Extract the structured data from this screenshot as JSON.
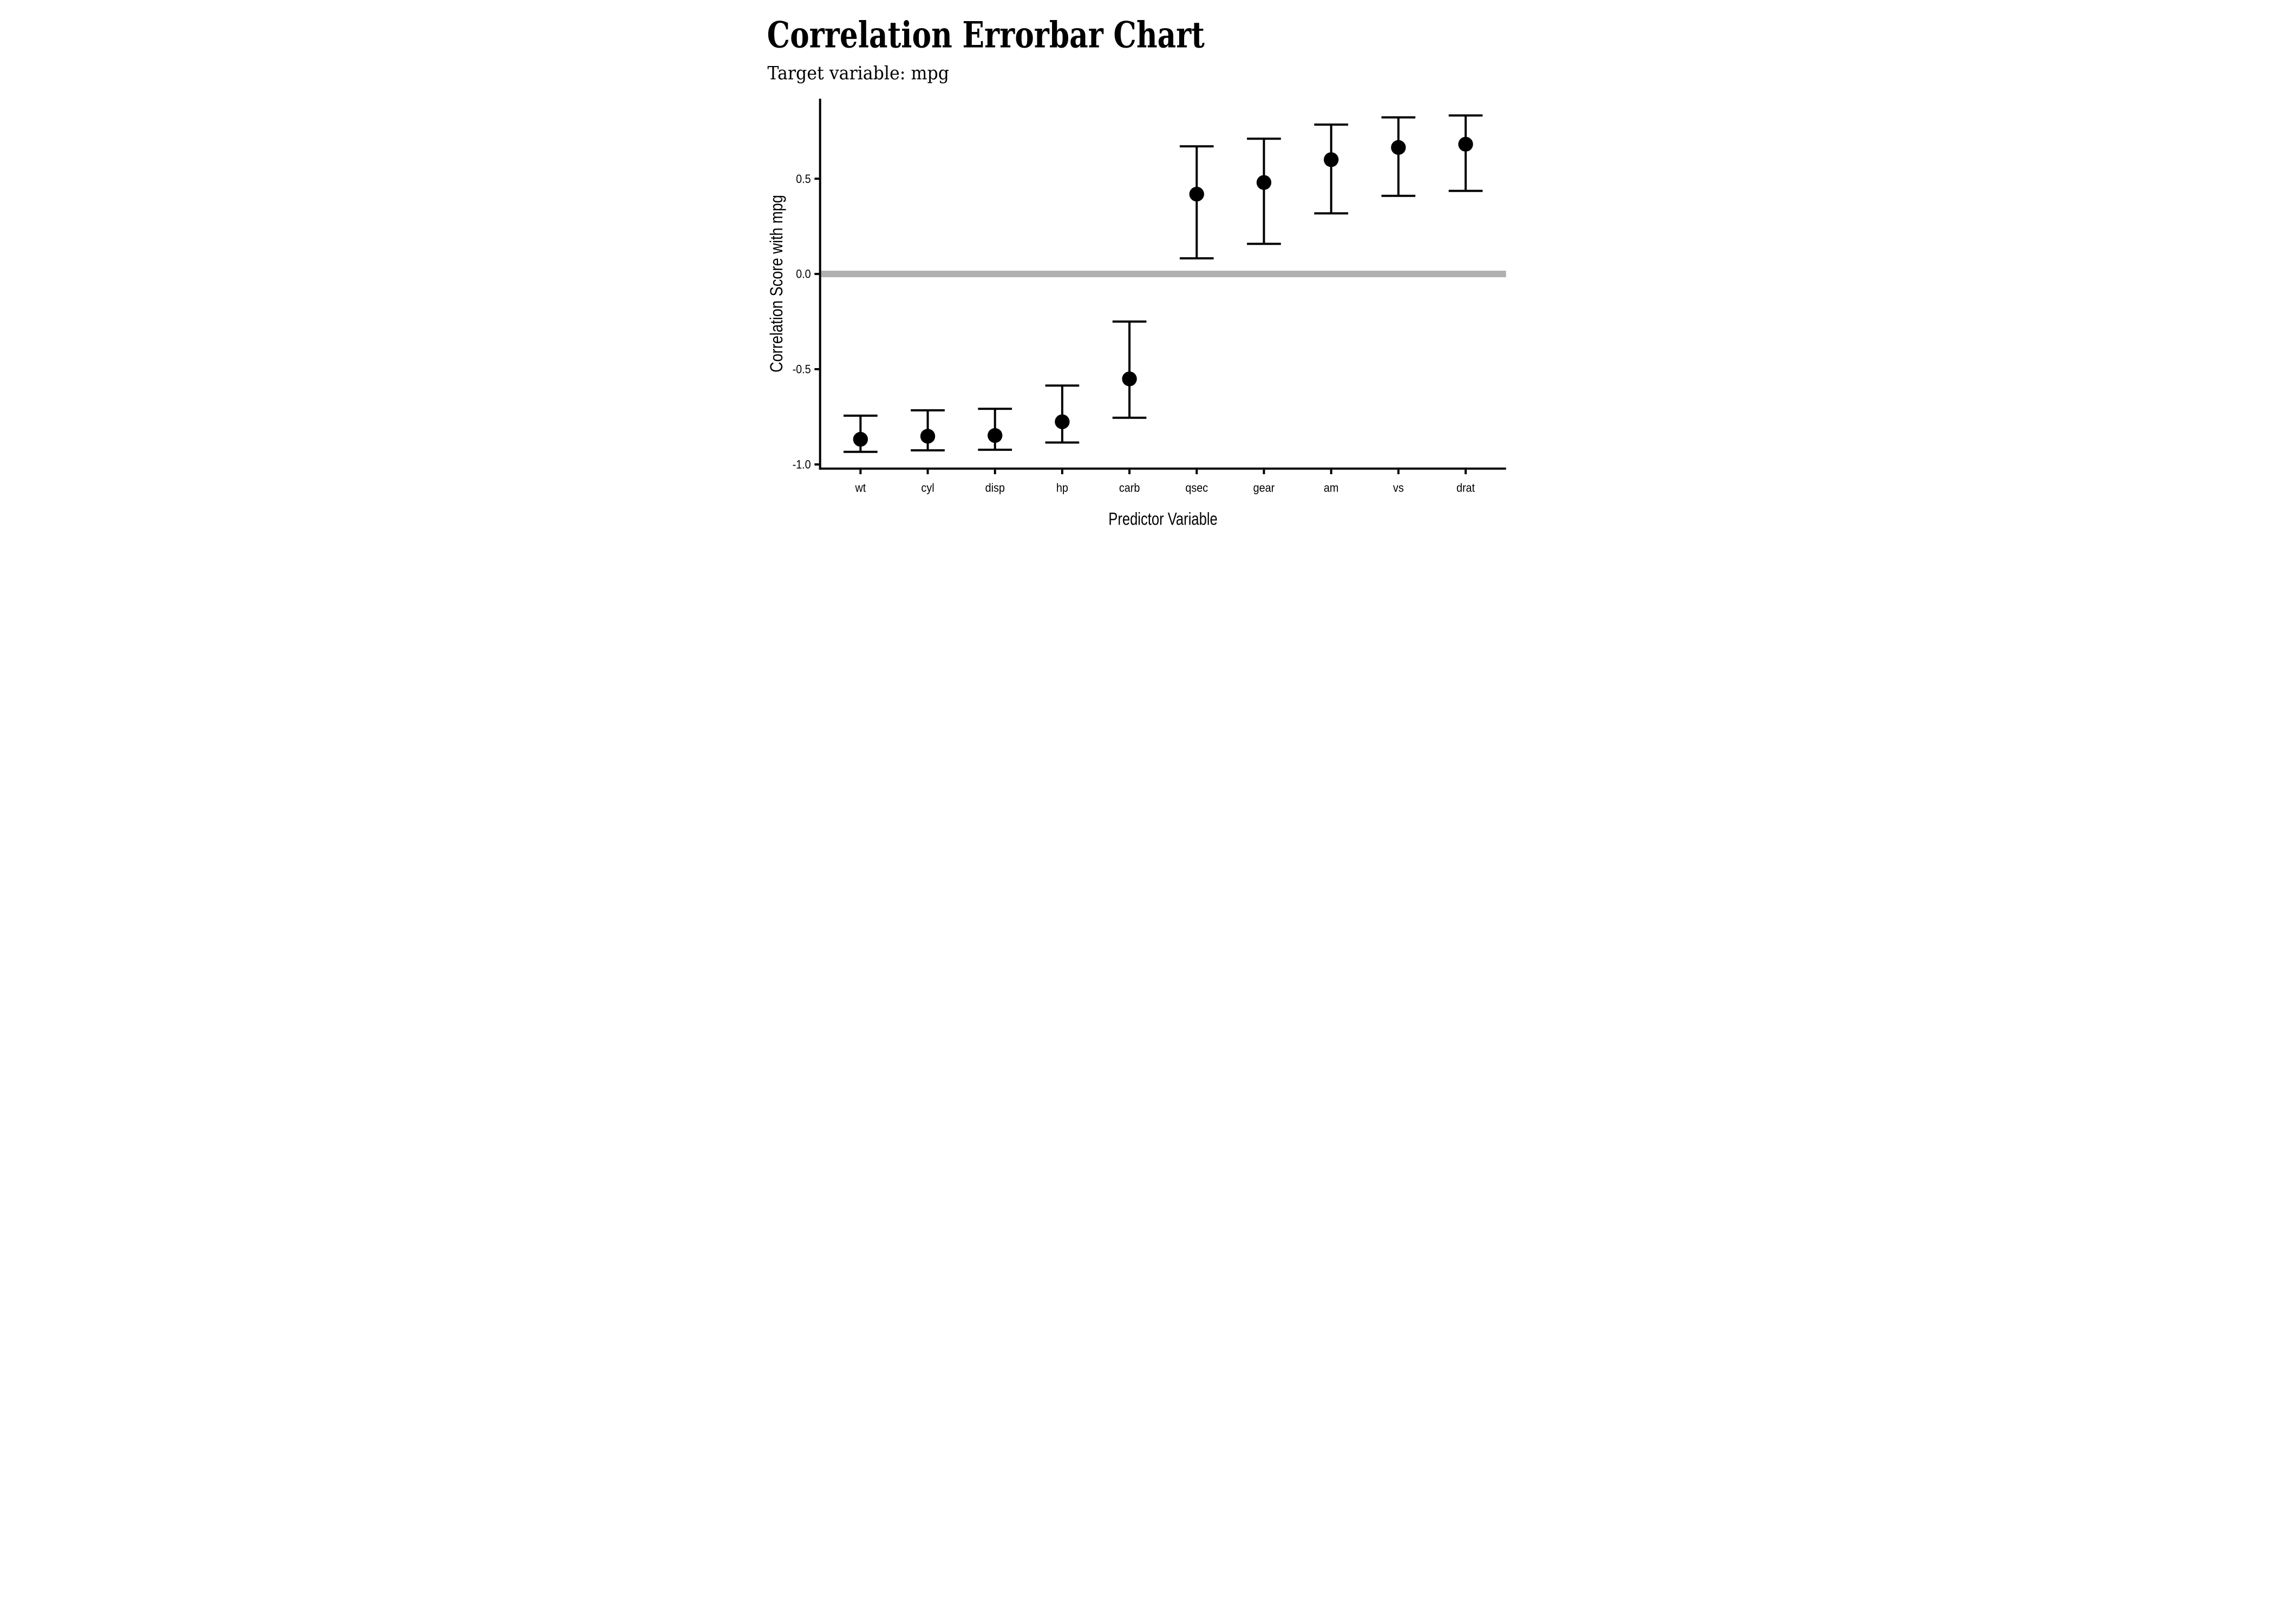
{
  "chart_data": {
    "type": "errorbar",
    "title": "Correlation Errorbar Chart",
    "subtitle": "Target variable: mpg",
    "xlabel": "Predictor Variable",
    "ylabel": "Correlation Score with mpg",
    "categories": [
      "wt",
      "cyl",
      "disp",
      "hp",
      "carb",
      "qsec",
      "gear",
      "am",
      "vs",
      "drat"
    ],
    "points": [
      {
        "label": "wt",
        "value": -0.868,
        "ci_low": -0.934,
        "ci_high": -0.744
      },
      {
        "label": "cyl",
        "value": -0.852,
        "ci_low": -0.926,
        "ci_high": -0.716
      },
      {
        "label": "disp",
        "value": -0.848,
        "ci_low": -0.923,
        "ci_high": -0.708
      },
      {
        "label": "hp",
        "value": -0.776,
        "ci_low": -0.885,
        "ci_high": -0.586
      },
      {
        "label": "carb",
        "value": -0.551,
        "ci_low": -0.755,
        "ci_high": -0.25
      },
      {
        "label": "qsec",
        "value": 0.419,
        "ci_low": 0.082,
        "ci_high": 0.67
      },
      {
        "label": "gear",
        "value": 0.48,
        "ci_low": 0.158,
        "ci_high": 0.71
      },
      {
        "label": "am",
        "value": 0.6,
        "ci_low": 0.318,
        "ci_high": 0.784
      },
      {
        "label": "vs",
        "value": 0.664,
        "ci_low": 0.41,
        "ci_high": 0.822
      },
      {
        "label": "drat",
        "value": 0.681,
        "ci_low": 0.436,
        "ci_high": 0.832
      }
    ],
    "yticks": [
      {
        "value": 0.5,
        "label": "0.5"
      },
      {
        "value": 0.0,
        "label": "0.0"
      },
      {
        "value": -0.5,
        "label": "-0.5"
      },
      {
        "value": -1.0,
        "label": "-1.0"
      }
    ],
    "ylim": [
      -1.022,
      0.92
    ],
    "zero_line": 0.0,
    "grid": "off",
    "legend": "none",
    "colors": {
      "marker": "#000000",
      "errorbar": "#000000",
      "zero_line": "#b0b0b0",
      "axis": "#000000",
      "text": "#000000",
      "background": "#ffffff"
    }
  }
}
